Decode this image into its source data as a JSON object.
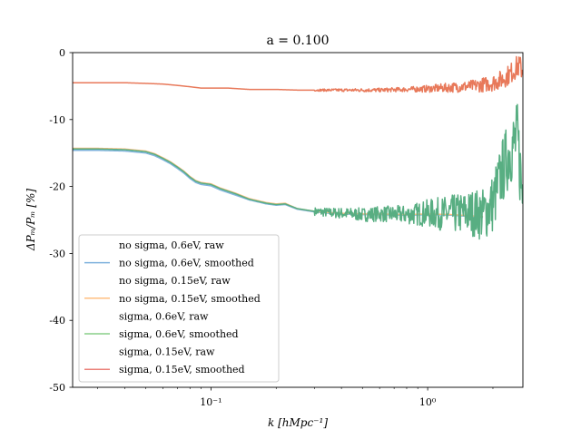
{
  "chart_data": {
    "type": "line",
    "title": "a = 0.100",
    "xlabel": "k [hMpc⁻¹]",
    "ylabel": "ΔPₘ/Pₘ [%]",
    "xscale": "log",
    "xlim": [
      0.023,
      2.75
    ],
    "ylim": [
      -50,
      0
    ],
    "yticks": [
      0,
      -10,
      -20,
      -30,
      -40,
      -50
    ],
    "ytick_labels": [
      "0",
      "-10",
      "-20",
      "-30",
      "-40",
      "-50"
    ],
    "xticks": [
      0.1,
      1
    ],
    "xtick_labels": [
      "10⁻¹",
      "10⁰"
    ],
    "grid": false,
    "legend_position": "lower-left",
    "legend": [
      {
        "label": "no sigma, 0.6eV, raw",
        "color": "#1f77b4",
        "visible": false
      },
      {
        "label": "no sigma, 0.6eV, smoothed",
        "color": "#7fb2dd",
        "visible": true
      },
      {
        "label": "no sigma, 0.15eV, raw",
        "color": "#ff7f0e",
        "visible": false
      },
      {
        "label": "no sigma, 0.15eV, smoothed",
        "color": "#ffbf80",
        "visible": true
      },
      {
        "label": "sigma, 0.6eV, raw",
        "color": "#2ca02c",
        "visible": false
      },
      {
        "label": "sigma, 0.6eV, smoothed",
        "color": "#89cf89",
        "visible": true
      },
      {
        "label": "sigma, 0.15eV, raw",
        "color": "#d62728",
        "visible": false
      },
      {
        "label": "sigma, 0.15eV, smoothed",
        "color": "#eb8079",
        "visible": true
      }
    ],
    "series": [
      {
        "name": "no sigma, 0.6eV, smoothed",
        "color": "#7fb2dd",
        "x": [
          0.023,
          0.03,
          0.04,
          0.05,
          0.055,
          0.06,
          0.065,
          0.07,
          0.075,
          0.08,
          0.085,
          0.09,
          0.1,
          0.11,
          0.13,
          0.15,
          0.18,
          0.2,
          0.22,
          0.25,
          0.3,
          0.35,
          0.4,
          0.5,
          0.6,
          0.8,
          1.0,
          1.3,
          1.6,
          1.8
        ],
        "y": [
          -14.6,
          -14.6,
          -14.7,
          -15.0,
          -15.4,
          -16.0,
          -16.6,
          -17.3,
          -18.0,
          -18.8,
          -19.4,
          -19.7,
          -19.9,
          -20.5,
          -21.3,
          -22.0,
          -22.6,
          -22.8,
          -22.7,
          -23.4,
          -23.8,
          -24.0,
          -24.1,
          -24.2,
          -24.2,
          -24.3,
          -24.2,
          -24.3,
          -24.5,
          -24.6
        ]
      },
      {
        "name": "no sigma, 0.15eV, smoothed",
        "color": "#ffbf80",
        "x": [
          0.023,
          0.03,
          0.04,
          0.05,
          0.055,
          0.06,
          0.065,
          0.07,
          0.075,
          0.08,
          0.085,
          0.09,
          0.1,
          0.11,
          0.13,
          0.15,
          0.18,
          0.2,
          0.22,
          0.25,
          0.3,
          0.35,
          0.4,
          0.5,
          0.6,
          0.8,
          1.0,
          1.3,
          1.6,
          1.8
        ],
        "y": [
          -14.3,
          -14.3,
          -14.4,
          -14.7,
          -15.1,
          -15.7,
          -16.3,
          -17.0,
          -17.7,
          -18.5,
          -19.1,
          -19.4,
          -19.6,
          -20.2,
          -21.0,
          -21.8,
          -22.4,
          -22.6,
          -22.5,
          -23.3,
          -23.7,
          -23.9,
          -24.0,
          -24.1,
          -24.1,
          -24.2,
          -24.1,
          -24.2,
          -24.4,
          -24.5
        ]
      },
      {
        "name": "sigma, 0.6eV, smoothed",
        "color": "#58ae82",
        "x": [
          0.023,
          0.03,
          0.04,
          0.05,
          0.055,
          0.06,
          0.065,
          0.07,
          0.075,
          0.08,
          0.085,
          0.09,
          0.1,
          0.11,
          0.13,
          0.15,
          0.18,
          0.2,
          0.22,
          0.25,
          0.3,
          0.35,
          0.4,
          0.5,
          0.6,
          0.8,
          1.0,
          1.3,
          1.6,
          1.8,
          2.0,
          2.2,
          2.4,
          2.6,
          2.75
        ],
        "y": [
          -14.4,
          -14.4,
          -14.5,
          -14.8,
          -15.2,
          -15.8,
          -16.4,
          -17.1,
          -17.8,
          -18.6,
          -19.2,
          -19.5,
          -19.7,
          -20.3,
          -21.1,
          -21.9,
          -22.5,
          -22.7,
          -22.6,
          -23.3,
          -23.7,
          -23.9,
          -24.0,
          -24.2,
          -24.1,
          -24.2,
          -24.0,
          -24.1,
          -23.9,
          -24.2,
          -22.5,
          -18.0,
          -14.5,
          -13.0,
          -22.0
        ],
        "noise_from_x": 0.3,
        "noise_amplitude": [
          0.6,
          1.4,
          3.5,
          6.0
        ]
      },
      {
        "name": "sigma, 0.15eV, smoothed",
        "color": "#e8795a",
        "x": [
          0.023,
          0.03,
          0.04,
          0.05,
          0.06,
          0.07,
          0.08,
          0.09,
          0.1,
          0.12,
          0.15,
          0.2,
          0.25,
          0.3,
          0.4,
          0.5,
          0.6,
          0.8,
          1.0,
          1.3,
          1.6,
          1.8,
          2.0,
          2.2,
          2.4,
          2.6,
          2.75
        ],
        "y": [
          -4.5,
          -4.5,
          -4.5,
          -4.6,
          -4.7,
          -4.9,
          -5.1,
          -5.3,
          -5.3,
          -5.3,
          -5.5,
          -5.5,
          -5.6,
          -5.6,
          -5.6,
          -5.6,
          -5.6,
          -5.5,
          -5.4,
          -5.2,
          -5.0,
          -4.8,
          -4.5,
          -4.0,
          -3.2,
          -2.0,
          -2.5
        ],
        "noise_from_x": 0.3,
        "noise_amplitude": [
          0.15,
          0.35,
          0.9,
          1.8
        ]
      }
    ]
  }
}
